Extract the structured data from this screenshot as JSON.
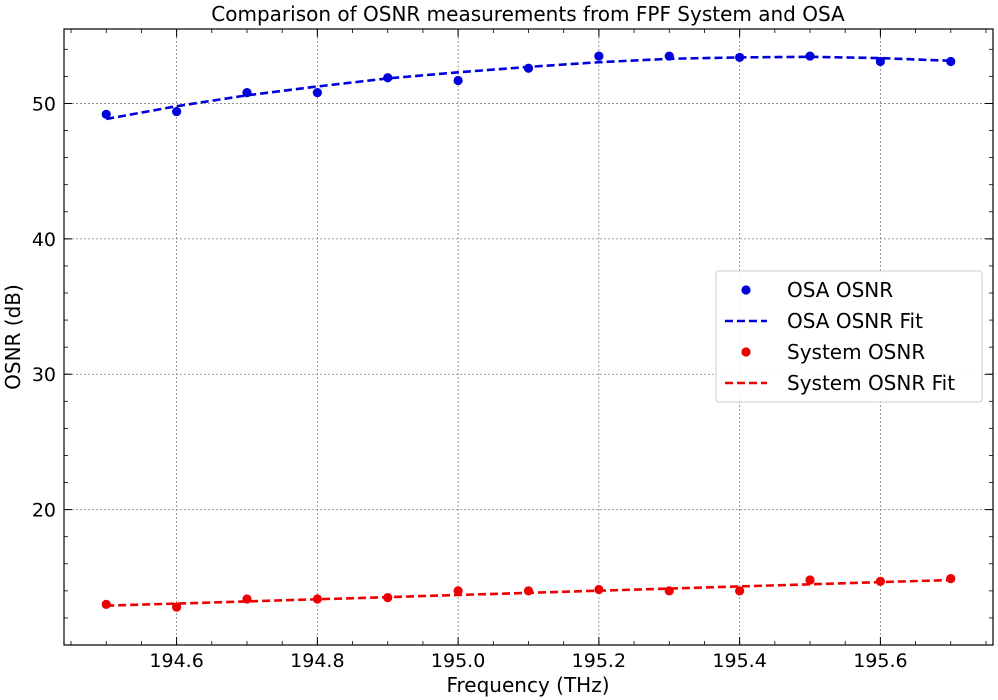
{
  "chart_data": {
    "type": "scatter",
    "title": "Comparison of OSNR measurements from FPF System and OSA",
    "xlabel": "Frequency (THz)",
    "ylabel": "OSNR (dB)",
    "xlim": [
      194.44,
      195.76
    ],
    "ylim": [
      10.0,
      55.5
    ],
    "grid": true,
    "legend_position": "center-right",
    "x_ticks": [
      "194.6",
      "194.8",
      "195.0",
      "195.2",
      "195.4",
      "195.6"
    ],
    "x_tick_values": [
      194.6,
      194.8,
      195.0,
      195.2,
      195.4,
      195.6
    ],
    "y_ticks": [
      "20",
      "30",
      "40",
      "50"
    ],
    "y_tick_values": [
      20,
      30,
      40,
      50
    ],
    "series": [
      {
        "name": "OSA OSNR",
        "kind": "points",
        "color": "#0000dd",
        "x": [
          194.5,
          194.6,
          194.7,
          194.8,
          194.9,
          195.0,
          195.1,
          195.2,
          195.3,
          195.4,
          195.5,
          195.6,
          195.7
        ],
        "y": [
          49.2,
          49.4,
          50.8,
          50.8,
          51.9,
          51.7,
          52.6,
          53.5,
          53.5,
          53.4,
          53.5,
          53.1,
          53.1
        ]
      },
      {
        "name": "OSA OSNR Fit",
        "kind": "dashed-line",
        "color": "#0000dd",
        "x": [
          194.5,
          194.6,
          194.7,
          194.8,
          194.9,
          195.0,
          195.1,
          195.2,
          195.3,
          195.4,
          195.5,
          195.6,
          195.7
        ],
        "y": [
          48.85,
          49.8,
          50.6,
          51.25,
          51.85,
          52.3,
          52.7,
          53.05,
          53.3,
          53.4,
          53.45,
          53.35,
          53.15
        ]
      },
      {
        "name": "System OSNR",
        "kind": "points",
        "color": "#ee0000",
        "x": [
          194.5,
          194.6,
          194.7,
          194.8,
          194.9,
          195.0,
          195.1,
          195.2,
          195.3,
          195.4,
          195.5,
          195.6,
          195.7
        ],
        "y": [
          13.0,
          12.8,
          13.4,
          13.4,
          13.5,
          14.0,
          14.0,
          14.1,
          14.0,
          14.0,
          14.8,
          14.7,
          14.9
        ]
      },
      {
        "name": "System OSNR Fit",
        "kind": "dashed-line",
        "color": "#ee0000",
        "x": [
          194.5,
          195.7
        ],
        "y": [
          12.9,
          14.8
        ]
      }
    ]
  }
}
